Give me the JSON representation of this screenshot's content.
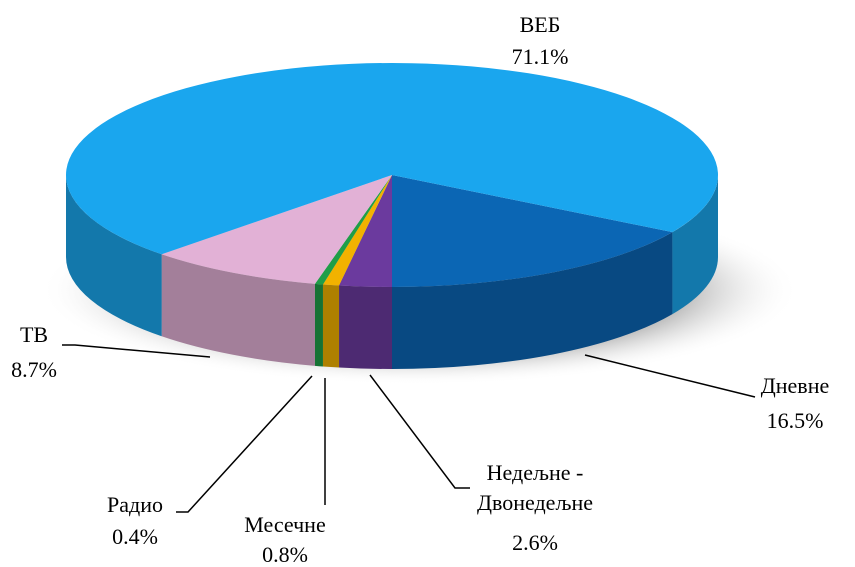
{
  "chart_data": {
    "type": "pie3d",
    "categories": [
      "Дневне",
      "Недељне - Двонедељне",
      "Месечне",
      "Радио",
      "ТВ",
      "ВЕБ"
    ],
    "values": [
      16.5,
      2.6,
      0.8,
      0.4,
      8.7,
      71.1
    ],
    "value_labels": [
      "16.5%",
      "2.6%",
      "0.8%",
      "0.4%",
      "8.7%",
      "71.1%"
    ],
    "colors": [
      "#0b66b4",
      "#6b3a9e",
      "#f2b200",
      "#1f9e48",
      "#e2b1d6",
      "#1aa6ee"
    ]
  }
}
